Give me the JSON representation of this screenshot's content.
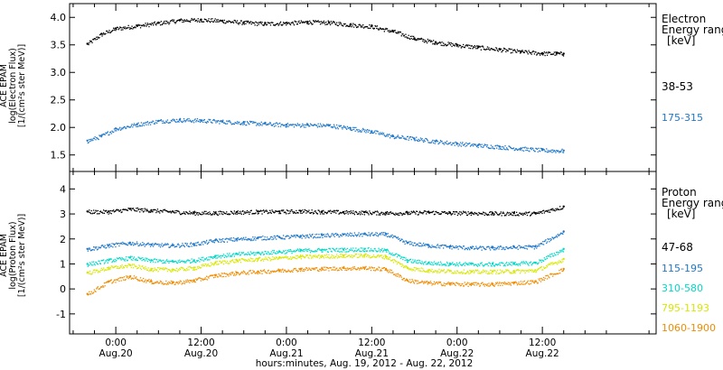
{
  "chart_data": [
    {
      "type": "scatter",
      "title": "",
      "ylabel_lines": [
        "ACE EPAM",
        "log(Electron Flux)",
        "[1/(cm²s ster MeV)]"
      ],
      "legend_title_lines": [
        "Electron",
        "Energy range",
        "[keV]"
      ],
      "ylim": [
        1.2,
        4.25
      ],
      "yticks": [
        "1.5",
        "2.0",
        "2.5",
        "3.0",
        "3.5",
        "4.0"
      ],
      "grid": false,
      "series": [
        {
          "name": "38-53",
          "color": "#000000",
          "x_hours": [
            -4,
            -2,
            0,
            3,
            6,
            9,
            12,
            15,
            18,
            21,
            24,
            27,
            30,
            33,
            36,
            39,
            42,
            45,
            48,
            51,
            54,
            57,
            60,
            63,
            62
          ],
          "values": [
            3.52,
            3.7,
            3.8,
            3.85,
            3.9,
            3.95,
            3.96,
            3.94,
            3.91,
            3.89,
            3.9,
            3.92,
            3.91,
            3.87,
            3.84,
            3.75,
            3.62,
            3.55,
            3.5,
            3.46,
            3.42,
            3.38,
            3.35,
            3.34,
            3.35
          ]
        },
        {
          "name": "175-315",
          "color": "#1f77c8",
          "x_hours": [
            -4,
            -2,
            0,
            3,
            6,
            9,
            12,
            15,
            18,
            21,
            24,
            27,
            30,
            33,
            36,
            39,
            42,
            45,
            48,
            51,
            54,
            57,
            60,
            63
          ],
          "values": [
            1.76,
            1.85,
            1.98,
            2.06,
            2.12,
            2.14,
            2.13,
            2.11,
            2.09,
            2.07,
            2.05,
            2.05,
            2.04,
            1.99,
            1.93,
            1.84,
            1.8,
            1.75,
            1.71,
            1.68,
            1.65,
            1.62,
            1.59,
            1.58
          ]
        }
      ]
    },
    {
      "type": "scatter",
      "title": "",
      "ylabel_lines": [
        "ACE EPAM",
        "log(Proton Flux)",
        "[1/(cm²s ster MeV)]"
      ],
      "legend_title_lines": [
        "Proton",
        "Energy range",
        "[keV]"
      ],
      "ylim": [
        -1.8,
        4.7
      ],
      "yticks": [
        "-1",
        "0",
        "1",
        "2",
        "3",
        "4"
      ],
      "grid": false,
      "series": [
        {
          "name": "47-68",
          "color": "#000000",
          "x_hours": [
            -4,
            -1,
            2,
            5,
            8,
            11,
            14,
            17,
            20,
            23,
            26,
            29,
            32,
            35,
            38,
            41,
            44,
            47,
            50,
            53,
            56,
            59,
            63
          ],
          "values": [
            3.1,
            3.1,
            3.2,
            3.15,
            3.1,
            3.05,
            3.05,
            3.08,
            3.1,
            3.1,
            3.12,
            3.1,
            3.08,
            3.07,
            3.05,
            3.05,
            3.08,
            3.05,
            3.05,
            3.03,
            3.03,
            3.03,
            3.3
          ]
        },
        {
          "name": "115-195",
          "color": "#1f77c8",
          "x_hours": [
            -4,
            -1,
            2,
            5,
            8,
            11,
            14,
            17,
            20,
            23,
            26,
            29,
            32,
            35,
            38,
            41,
            44,
            47,
            50,
            53,
            56,
            59,
            63
          ],
          "values": [
            1.6,
            1.75,
            1.85,
            1.78,
            1.75,
            1.8,
            1.95,
            2.0,
            2.05,
            2.08,
            2.12,
            2.15,
            2.18,
            2.2,
            2.2,
            1.85,
            1.75,
            1.7,
            1.65,
            1.65,
            1.68,
            1.7,
            2.3
          ]
        },
        {
          "name": "310-580",
          "color": "#00d8c8",
          "x_hours": [
            -4,
            -1,
            2,
            5,
            8,
            11,
            14,
            17,
            20,
            23,
            26,
            29,
            32,
            35,
            38,
            41,
            44,
            47,
            50,
            53,
            56,
            59,
            63
          ],
          "values": [
            1.0,
            1.15,
            1.25,
            1.15,
            1.1,
            1.15,
            1.32,
            1.4,
            1.45,
            1.5,
            1.55,
            1.57,
            1.58,
            1.6,
            1.55,
            1.15,
            1.05,
            1.02,
            1.0,
            1.0,
            1.03,
            1.05,
            1.6
          ]
        },
        {
          "name": "795-1193",
          "color": "#d8e800",
          "x_hours": [
            -4,
            -1,
            2,
            5,
            8,
            11,
            14,
            17,
            20,
            23,
            26,
            29,
            32,
            35,
            38,
            41,
            44,
            47,
            50,
            53,
            56,
            59,
            63
          ],
          "values": [
            0.65,
            0.85,
            0.95,
            0.8,
            0.78,
            0.85,
            1.05,
            1.15,
            1.2,
            1.25,
            1.3,
            1.32,
            1.34,
            1.35,
            1.3,
            0.85,
            0.75,
            0.72,
            0.7,
            0.7,
            0.72,
            0.75,
            1.2
          ]
        },
        {
          "name": "1060-1900",
          "color": "#f08c00",
          "x_hours": [
            -4,
            -1,
            2,
            5,
            8,
            11,
            14,
            17,
            20,
            23,
            26,
            29,
            32,
            35,
            38,
            41,
            44,
            47,
            50,
            53,
            56,
            59,
            63
          ],
          "values": [
            -0.2,
            0.3,
            0.5,
            0.3,
            0.25,
            0.35,
            0.55,
            0.65,
            0.7,
            0.75,
            0.8,
            0.82,
            0.84,
            0.85,
            0.8,
            0.35,
            0.25,
            0.22,
            0.2,
            0.2,
            0.25,
            0.3,
            0.8
          ]
        }
      ]
    }
  ],
  "x_axis": {
    "xlim_hours": [
      -6.5,
      76
    ],
    "ticks": [
      {
        "hour": 0,
        "top": "0:00",
        "bottom": "Aug.20"
      },
      {
        "hour": 12,
        "top": "12:00",
        "bottom": "Aug.20"
      },
      {
        "hour": 24,
        "top": "0:00",
        "bottom": "Aug.21"
      },
      {
        "hour": 36,
        "top": "12:00",
        "bottom": "Aug.21"
      },
      {
        "hour": 48,
        "top": "0:00",
        "bottom": "Aug.22"
      },
      {
        "hour": 60,
        "top": "12:00",
        "bottom": "Aug.22"
      }
    ],
    "xlabel": "hours:minutes, Aug. 19, 2012 - Aug. 22, 2012"
  }
}
